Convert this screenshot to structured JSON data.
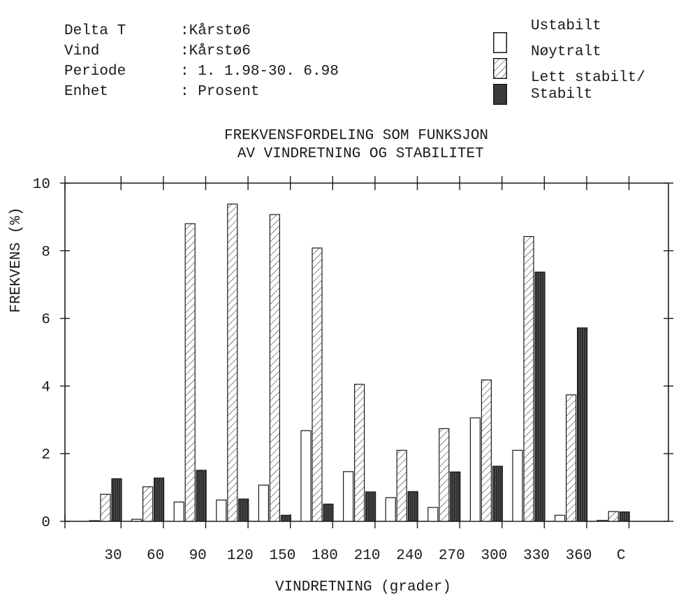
{
  "meta": {
    "rows": [
      {
        "key": "Delta T",
        "value": ":Kårstø6"
      },
      {
        "key": "Vind",
        "value": ":Kårstø6"
      },
      {
        "key": "Periode",
        "value": ": 1. 1.98-30. 6.98"
      },
      {
        "key": "Enhet",
        "value": ": Prosent"
      }
    ]
  },
  "legend": [
    {
      "label": "Ustabilt",
      "pattern": "open"
    },
    {
      "label": "Nøytralt",
      "pattern": "hatched"
    },
    {
      "label": "Lett stabilt/\nStabilt",
      "pattern": "dark"
    }
  ],
  "chart_data": {
    "type": "bar",
    "title": "FREKVENSFORDELING SOM FUNKSJON\n AV VINDRETNING OG STABILITET",
    "xlabel": "VINDRETNING (grader)",
    "ylabel": "FREKVENS (%)",
    "categories": [
      "30",
      "60",
      "90",
      "120",
      "150",
      "180",
      "210",
      "240",
      "270",
      "300",
      "330",
      "360",
      "C"
    ],
    "ylim": [
      0,
      10
    ],
    "yticks": [
      0,
      2,
      4,
      6,
      8,
      10
    ],
    "series": [
      {
        "name": "Ustabilt",
        "values": [
          0.02,
          0.06,
          0.57,
          0.63,
          1.07,
          2.68,
          1.47,
          0.7,
          0.41,
          3.06,
          2.1,
          0.18,
          0.03
        ]
      },
      {
        "name": "Nøytralt",
        "values": [
          0.8,
          1.02,
          8.8,
          9.38,
          9.07,
          8.08,
          4.05,
          2.1,
          2.74,
          4.18,
          8.42,
          3.74,
          0.29
        ]
      },
      {
        "name": "Lett stabilt/Stabilt",
        "values": [
          1.26,
          1.28,
          1.51,
          0.66,
          0.18,
          0.51,
          0.87,
          0.88,
          1.46,
          1.63,
          7.37,
          5.72,
          0.28
        ]
      }
    ],
    "colors": {
      "open": "#ffffff",
      "hatch": "#2a2a2a",
      "dark": "#3a3a3a",
      "axis": "#1a1a1a"
    },
    "grid": false
  }
}
